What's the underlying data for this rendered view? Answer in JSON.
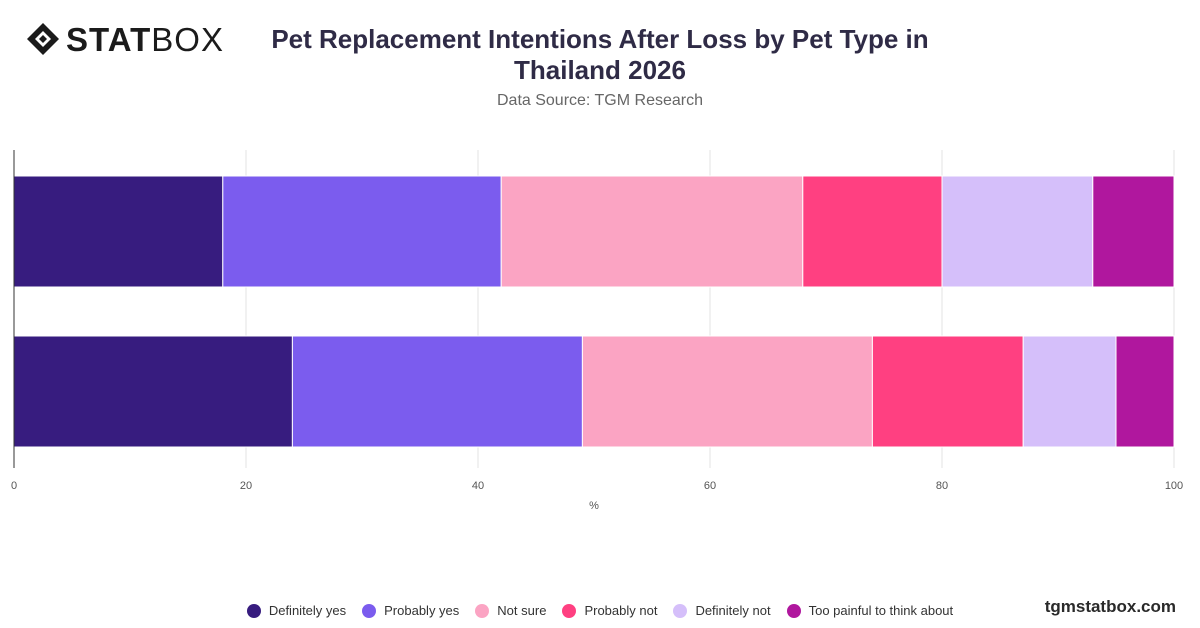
{
  "brand": {
    "logo_bold": "STAT",
    "logo_light": "BOX"
  },
  "header": {
    "title": "Pet Replacement Intentions After Loss by Pet Type in Thailand 2026",
    "subtitle": "Data Source: TGM Research"
  },
  "footer": {
    "site": "tgmstatbox.com"
  },
  "chart_data": {
    "type": "bar",
    "orientation": "horizontal",
    "stacked": true,
    "categories": [
      "",
      ""
    ],
    "series": [
      {
        "name": "Definitely yes",
        "color": "#371c7f",
        "values": [
          18,
          24
        ]
      },
      {
        "name": "Probably yes",
        "color": "#7b5cee",
        "values": [
          24,
          25
        ]
      },
      {
        "name": "Not sure",
        "color": "#fba4c3",
        "values": [
          26,
          25
        ]
      },
      {
        "name": "Probably not",
        "color": "#ff4081",
        "values": [
          12,
          13
        ]
      },
      {
        "name": "Definitely not",
        "color": "#d5bffa",
        "values": [
          13,
          8
        ]
      },
      {
        "name": "Too painful to think about",
        "color": "#b0179e",
        "values": [
          7,
          5
        ]
      }
    ],
    "xlabel": "%",
    "xlim": [
      0,
      100
    ],
    "xticks": [
      0,
      20,
      40,
      60,
      80,
      100
    ],
    "grid": true,
    "legend_position": "bottom"
  }
}
